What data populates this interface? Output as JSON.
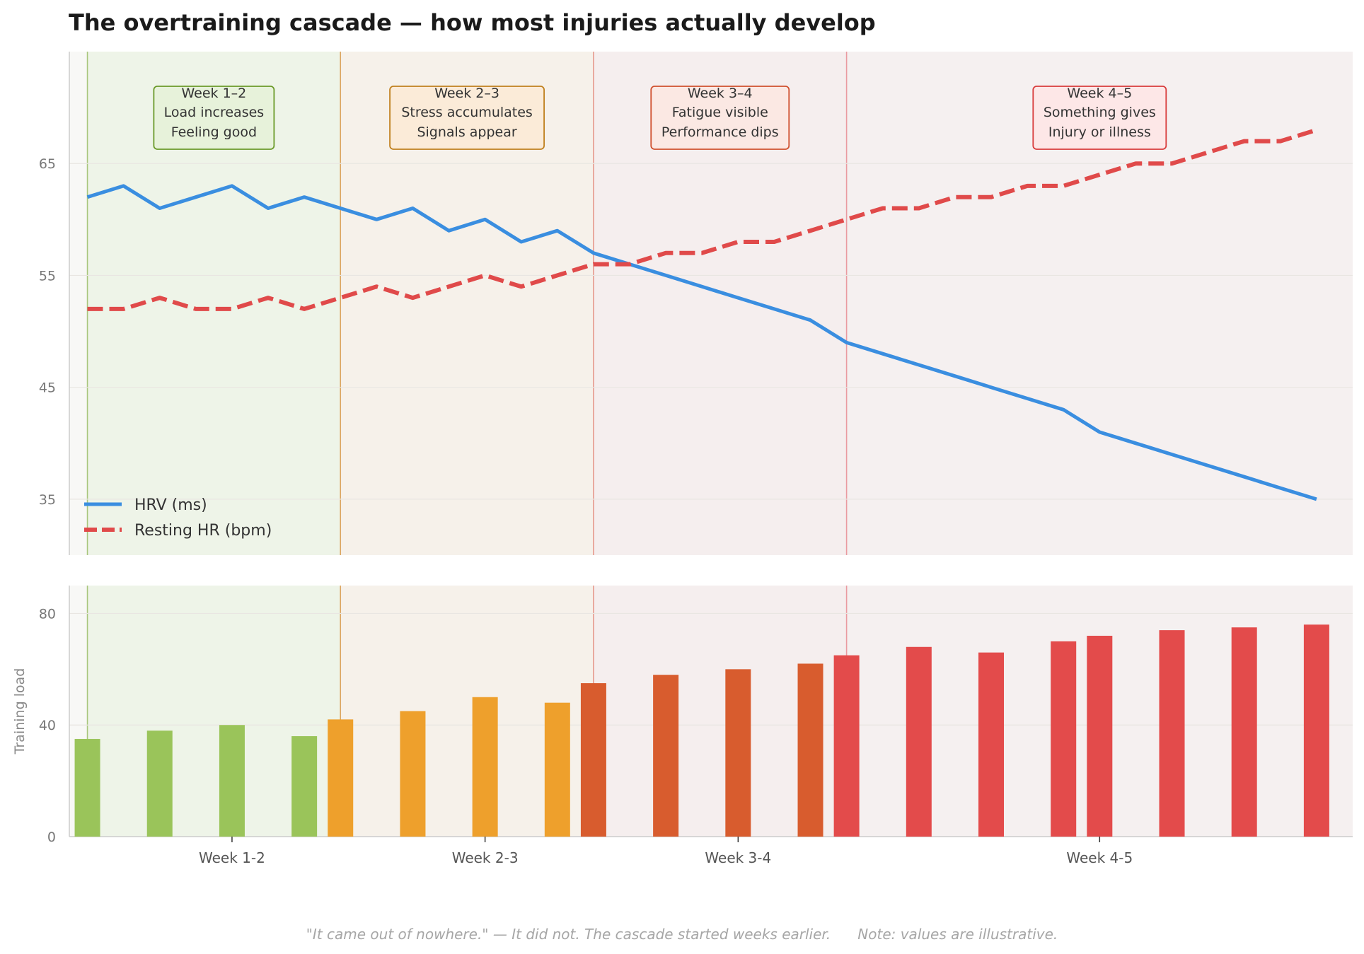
{
  "title": "The overtraining cascade — how most injuries actually develop",
  "footer": "\"It came out of nowhere.\" — It did not. The cascade started weeks earlier.      Note: values are illustrative.",
  "colors": {
    "hrv": "#3a8ee0",
    "rhr": "#e04a4a",
    "phase_fill": [
      "#eef4e8",
      "#f6f1ea",
      "#f5eeee",
      "#f5f0f0"
    ],
    "phase_line": [
      "#a8c57c",
      "#dca560",
      "#e59a8e",
      "#ea9aa0"
    ],
    "box_fill": [
      "#e7f2da",
      "#fbebd8",
      "#fbe8e3",
      "#fde7e7"
    ],
    "box_edge": [
      "#6b9a2a",
      "#c0801e",
      "#d0502e",
      "#d83c3c"
    ],
    "bar": [
      "#9ac45a",
      "#eea02c",
      "#d85c2e",
      "#e34b4b"
    ]
  },
  "chart_data": [
    {
      "type": "line",
      "ylim": [
        30,
        75
      ],
      "yticks": [
        "35",
        "45",
        "55",
        "65"
      ],
      "x": [
        1,
        2,
        3,
        4,
        5,
        6,
        7,
        8,
        9,
        10,
        11,
        12,
        13,
        14,
        15,
        16,
        17,
        18,
        19,
        20,
        21,
        22,
        23,
        24,
        25,
        26,
        27,
        28,
        29,
        30,
        31,
        32,
        33,
        34,
        35
      ],
      "series": [
        {
          "name": "HRV (ms)",
          "style": "solid",
          "values": [
            62,
            63,
            61,
            62,
            63,
            61,
            62,
            61,
            60,
            61,
            59,
            60,
            58,
            59,
            57,
            56,
            55,
            54,
            53,
            52,
            51,
            49,
            48,
            47,
            46,
            45,
            44,
            43,
            41,
            40,
            39,
            38,
            37,
            36,
            35
          ]
        },
        {
          "name": "Resting HR (bpm)",
          "style": "dashed",
          "values": [
            52,
            52,
            53,
            52,
            52,
            53,
            52,
            53,
            54,
            53,
            54,
            55,
            54,
            55,
            56,
            56,
            57,
            57,
            58,
            58,
            59,
            60,
            61,
            61,
            62,
            62,
            63,
            63,
            64,
            65,
            65,
            66,
            67,
            67,
            68
          ]
        }
      ],
      "phases": [
        {
          "start": 1,
          "end": 8,
          "lines": [
            "Week 1–2",
            "Load increases",
            "Feeling good"
          ]
        },
        {
          "start": 8,
          "end": 15,
          "lines": [
            "Week 2–3",
            "Stress accumulates",
            "Signals appear"
          ]
        },
        {
          "start": 15,
          "end": 22,
          "lines": [
            "Week 3–4",
            "Fatigue visible",
            "Performance dips"
          ]
        },
        {
          "start": 22,
          "end": 35,
          "lines": [
            "Week 4–5",
            "Something gives",
            "Injury or illness"
          ]
        }
      ],
      "legend": "lower-left"
    },
    {
      "type": "bar",
      "ylabel": "Training load",
      "ylim": [
        0,
        90
      ],
      "yticks": [
        "0",
        "40",
        "80"
      ],
      "x": [
        1,
        3,
        5,
        7,
        8,
        10,
        12,
        14,
        15,
        17,
        19,
        21,
        22,
        24,
        26,
        28,
        29,
        31,
        33,
        35
      ],
      "values": [
        35,
        38,
        40,
        36,
        42,
        45,
        50,
        48,
        55,
        58,
        60,
        62,
        65,
        68,
        66,
        70,
        72,
        74,
        75,
        76
      ],
      "phase": [
        0,
        0,
        0,
        0,
        1,
        1,
        1,
        1,
        2,
        2,
        2,
        2,
        3,
        3,
        3,
        3,
        3,
        3,
        3,
        3
      ],
      "categories": [
        "Week 1-2",
        "Week 2-3",
        "Week 3-4",
        "Week 4-5"
      ]
    }
  ]
}
